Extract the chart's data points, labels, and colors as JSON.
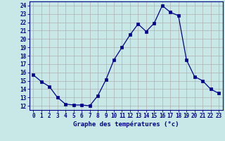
{
  "x": [
    0,
    1,
    2,
    3,
    4,
    5,
    6,
    7,
    8,
    9,
    10,
    11,
    12,
    13,
    14,
    15,
    16,
    17,
    18,
    19,
    20,
    21,
    22,
    23
  ],
  "y": [
    15.7,
    14.9,
    14.3,
    13.0,
    12.2,
    12.1,
    12.1,
    12.0,
    13.2,
    15.1,
    17.5,
    19.0,
    20.5,
    21.8,
    20.9,
    21.9,
    24.0,
    23.2,
    22.8,
    17.5,
    15.5,
    15.0,
    14.0,
    13.5
  ],
  "line_color": "#00008b",
  "marker": "s",
  "marker_size": 2.5,
  "bg_color": "#c8e8e8",
  "grid_color": "#b0b0b0",
  "xlabel": "Graphe des températures (°c)",
  "xlabel_color": "#00008b",
  "ylabel_ticks": [
    12,
    13,
    14,
    15,
    16,
    17,
    18,
    19,
    20,
    21,
    22,
    23,
    24
  ],
  "xtick_labels": [
    "0",
    "1",
    "2",
    "3",
    "4",
    "5",
    "6",
    "7",
    "8",
    "9",
    "10",
    "11",
    "12",
    "13",
    "14",
    "15",
    "16",
    "17",
    "18",
    "19",
    "20",
    "21",
    "22",
    "23"
  ],
  "ylim": [
    11.5,
    24.5
  ],
  "xlim": [
    -0.5,
    23.5
  ],
  "tick_color": "#00008b",
  "axis_color": "#00008b",
  "tick_fontsize": 5.5,
  "xlabel_fontsize": 6.5
}
